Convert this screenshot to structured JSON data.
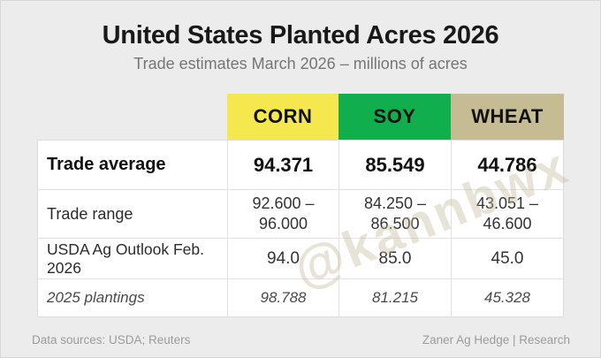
{
  "title": "United States Planted Acres 2026",
  "subtitle": "Trade estimates March 2026 – millions of acres",
  "watermark": "@kannbwx",
  "footer": {
    "left": "Data sources: USDA; Reuters",
    "right": "Zaner Ag Hedge | Research"
  },
  "colors": {
    "background": "#ececec",
    "corn": "#f5e84e",
    "soy": "#10ae4d",
    "wheat": "#c5bc93",
    "title_text": "#191919",
    "muted_text": "#9b9b9b"
  },
  "table": {
    "columns": [
      {
        "label": "CORN",
        "color": "#f5e84e"
      },
      {
        "label": "SOY",
        "color": "#10ae4d"
      },
      {
        "label": "WHEAT",
        "color": "#c5bc93"
      }
    ],
    "rows": [
      {
        "label": "Trade average",
        "values": [
          "94.371",
          "85.549",
          "44.786"
        ]
      },
      {
        "label": "Trade range",
        "values": [
          "92.600 –\n96.000",
          "84.250 –\n86.500",
          "43.051 –\n46.600"
        ]
      },
      {
        "label": "USDA Ag Outlook Feb. 2026",
        "values": [
          "94.0",
          "85.0",
          "45.0"
        ]
      },
      {
        "label": "2025 plantings",
        "values": [
          "98.788",
          "81.215",
          "45.328"
        ]
      }
    ]
  },
  "chart_data": {
    "type": "table",
    "title": "United States Planted Acres 2026",
    "subtitle": "Trade estimates March 2026 – millions of acres",
    "categories": [
      "CORN",
      "SOY",
      "WHEAT"
    ],
    "series": [
      {
        "name": "Trade average",
        "values": [
          94.371,
          85.549,
          44.786
        ]
      },
      {
        "name": "Trade range low",
        "values": [
          92.6,
          84.25,
          43.051
        ]
      },
      {
        "name": "Trade range high",
        "values": [
          96.0,
          86.5,
          46.6
        ]
      },
      {
        "name": "USDA Ag Outlook Feb. 2026",
        "values": [
          94.0,
          85.0,
          45.0
        ]
      },
      {
        "name": "2025 plantings",
        "values": [
          98.788,
          81.215,
          45.328
        ]
      }
    ],
    "units": "millions of acres",
    "legend_position": "none",
    "grid": false
  }
}
